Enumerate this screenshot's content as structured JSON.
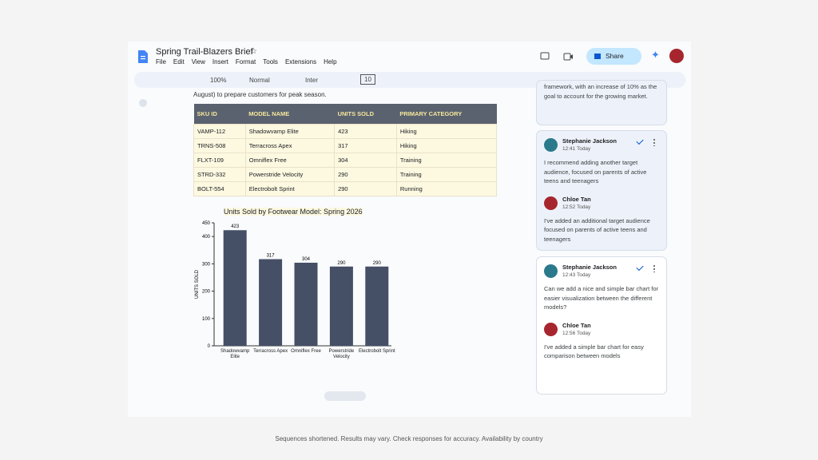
{
  "header": {
    "title": "Spring Trail-Blazers Brief",
    "menu": [
      "File",
      "Edit",
      "View",
      "Insert",
      "Format",
      "Tools",
      "Extensions",
      "Help"
    ],
    "share": "Share"
  },
  "toolbar": {
    "zoom": "100%",
    "style": "Normal",
    "font": "Inter",
    "size": "10"
  },
  "document": {
    "text": "August) to prepare customers for peak season.",
    "table": {
      "header": [
        "SKU ID",
        "MODEL NAME",
        "UNITS SOLD",
        "PRIMARY CATEGORY"
      ],
      "rows": [
        [
          "VAMP-112",
          "Shadowvamp Elite",
          "423",
          "Hiking"
        ],
        [
          "TRNS-508",
          "Terracross Apex",
          "317",
          "Hiking"
        ],
        [
          "FLXT-109",
          "Omniflex Free",
          "304",
          "Training"
        ],
        [
          "STRD-332",
          "Powerstride Velocity",
          "290",
          "Training"
        ],
        [
          "BOLT-554",
          "Electrobolt Sprint",
          "290",
          "Running"
        ]
      ]
    }
  },
  "chart": {
    "type": "bar",
    "title": "Units Sold by Footwear Model: Spring 2026",
    "y_label": "UNITS SOLD",
    "categories": [
      "Shadowvamp Elite",
      "Terracross Apex",
      "Omniflex Free",
      "Powerstride Velocity",
      "Electrobolt Sprint"
    ],
    "values": [
      423,
      317,
      304,
      290,
      290
    ],
    "color": "#454f66",
    "ylim": [
      0,
      450
    ],
    "yticks": [
      0,
      100,
      200,
      300,
      400,
      450
    ]
  },
  "comments": [
    {
      "entries": [
        {
          "text": "framework, with an increase of 10% as the goal to account for the growing market."
        }
      ]
    },
    {
      "entries": [
        {
          "author": "Stephanie Jackson",
          "time": "12:41 Today",
          "text": "I recommend adding another target audience, focused on parents of active teens and teenagers"
        },
        {
          "author": "Chloe Tan",
          "time": "12:52 Today",
          "text": "I've added an additional target audience focused on parents of active teens and teenagers"
        }
      ]
    },
    {
      "entries": [
        {
          "author": "Stephanie Jackson",
          "time": "12:43 Today",
          "text": "Can we add a nice and simple bar chart for easier visualization between the different models?"
        },
        {
          "author": "Chloe Tan",
          "time": "12:56 Today",
          "text": "I've added a simple bar chart for easy comparison between models"
        }
      ]
    }
  ],
  "footer": "Sequences shortened. Results may vary. Check responses for accuracy. Availability by country"
}
